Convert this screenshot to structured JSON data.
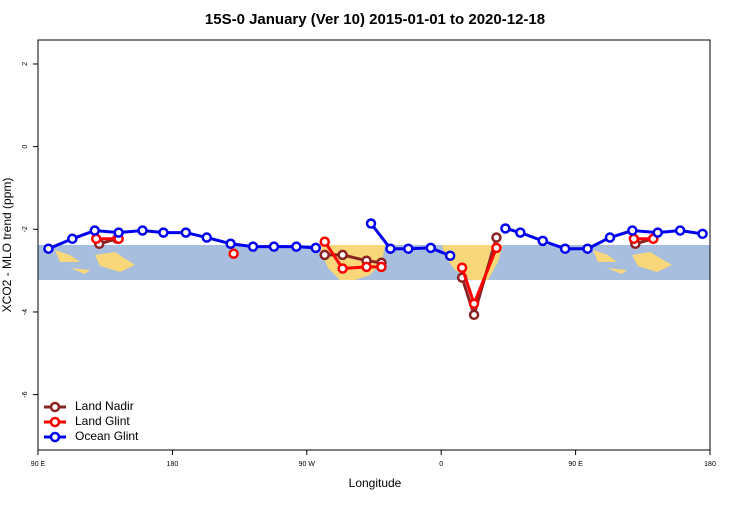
{
  "chart_data": {
    "type": "line",
    "title": "15S-0 January (Ver 10)   2015-01-01 to 2020-12-18",
    "x_label": "Longitude",
    "y_label": "XCO2 - MLO trend (ppm)",
    "xlim": [
      90,
      540
    ],
    "ylim": [
      2.58,
      -7.34
    ],
    "xticks": [
      {
        "value": 90,
        "label": "90 E"
      },
      {
        "value": 180,
        "label": "180"
      },
      {
        "value": 270,
        "label": "90 W"
      },
      {
        "value": 360,
        "label": "0"
      },
      {
        "value": 450,
        "label": "90 E"
      },
      {
        "value": 540,
        "label": "180"
      }
    ],
    "yticks": [
      2,
      0,
      -2,
      -4,
      -6
    ],
    "legend": "bottom-left",
    "series": [
      {
        "name": "Land Nadir",
        "color": "#8b2323",
        "x": [
          131,
          143,
          210,
          282,
          294,
          310,
          320,
          345,
          374,
          382,
          397,
          440,
          490,
          502
        ],
        "values": [
          -2.35,
          -2.23,
          null,
          -2.62,
          -2.62,
          -2.76,
          -2.81,
          null,
          -3.17,
          -4.07,
          -2.2,
          null,
          -2.35,
          -2.23
        ]
      },
      {
        "name": "Land Glint",
        "color": "#ff0000",
        "x": [
          129,
          144,
          180,
          221,
          250,
          282,
          294,
          310,
          320,
          345,
          374,
          382,
          397,
          440,
          489,
          502
        ],
        "values": [
          -2.23,
          -2.23,
          null,
          -2.59,
          null,
          -2.3,
          -2.95,
          -2.91,
          -2.91,
          null,
          -2.93,
          -3.8,
          -2.45,
          null,
          -2.23,
          -2.23
        ]
      },
      {
        "name": "Ocean Glint",
        "color": "#0000ee",
        "x": [
          97,
          113,
          128,
          144,
          160,
          174,
          189,
          203,
          219,
          234,
          248,
          263,
          276,
          295,
          313,
          326,
          338,
          353,
          366,
          385,
          403,
          413,
          428,
          443,
          458,
          473,
          488,
          505,
          520,
          535
        ],
        "values": [
          -2.47,
          -2.23,
          -2.03,
          -2.08,
          -2.03,
          -2.08,
          -2.08,
          -2.2,
          -2.35,
          -2.42,
          -2.42,
          -2.42,
          -2.45,
          null,
          -1.86,
          -2.47,
          -2.47,
          -2.45,
          -2.64,
          null,
          -1.98,
          -2.08,
          -2.28,
          -2.47,
          -2.47,
          -2.2,
          -2.03,
          -2.08,
          -2.03,
          -2.11
        ]
      }
    ]
  }
}
